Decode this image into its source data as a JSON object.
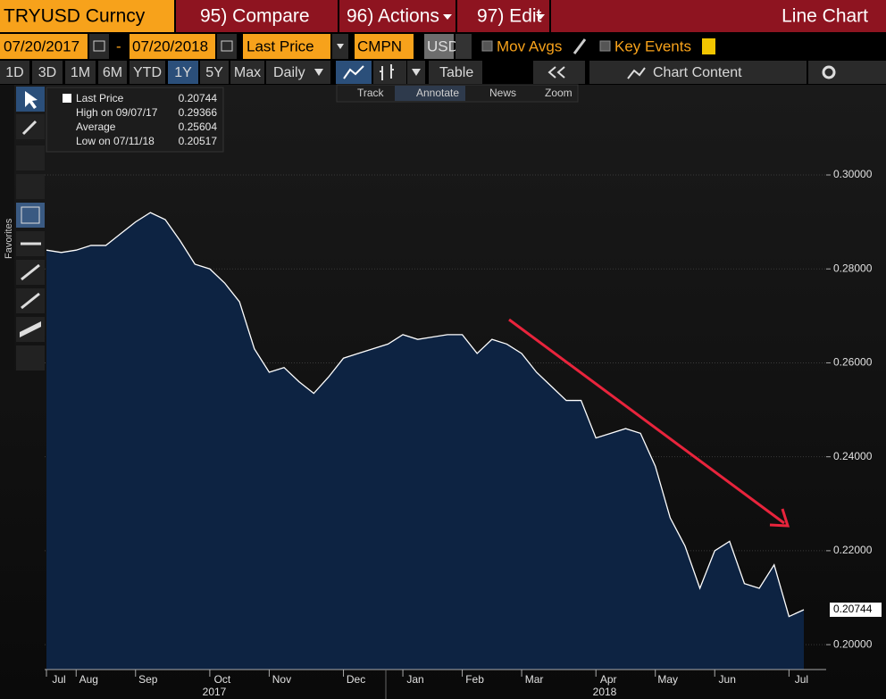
{
  "toolbar": {
    "ticker": "TRYUSD Curncy",
    "compare": "95) Compare",
    "actions": "96) Actions",
    "edit": "97) Edit",
    "view": "Line Chart"
  },
  "controls": {
    "start_date": "07/20/2017",
    "separator": "-",
    "end_date": "07/20/2018",
    "field": "Last Price",
    "source": "CMPN",
    "currency": "USD",
    "mov_avgs": "Mov Avgs",
    "key_events": "Key Events"
  },
  "periods": [
    "1D",
    "3D",
    "1M",
    "6M",
    "YTD",
    "1Y",
    "5Y",
    "Max"
  ],
  "frequency": "Daily",
  "table": "Table",
  "chart_content": "Chart Content",
  "annotation_tools": [
    "Track",
    "Annotate",
    "News",
    "Zoom"
  ],
  "sidebar": {
    "favorites": "Favorites"
  },
  "chart_data": {
    "type": "area",
    "color": "#ffffff",
    "fill": "#0d2342",
    "categories": [
      "Jul",
      null,
      "Aug",
      null,
      null,
      null,
      "Sep",
      null,
      null,
      null,
      null,
      "Oct",
      null,
      null,
      null,
      "Nov",
      null,
      null,
      null,
      null,
      "Dec",
      null,
      null,
      null,
      "Jan",
      null,
      null,
      null,
      "Feb",
      null,
      null,
      null,
      "Mar",
      null,
      null,
      null,
      null,
      "Apr",
      null,
      null,
      null,
      "May",
      null,
      null,
      null,
      "Jun",
      null,
      null,
      null,
      null,
      "Jul",
      null
    ],
    "values": [
      0.284,
      0.2835,
      0.284,
      0.285,
      0.285,
      0.2875,
      0.29,
      0.292,
      0.2905,
      0.286,
      0.281,
      0.28,
      0.277,
      0.273,
      0.263,
      0.258,
      0.259,
      0.256,
      0.2535,
      0.257,
      0.261,
      0.262,
      0.263,
      0.264,
      0.266,
      0.265,
      0.2655,
      0.266,
      0.266,
      0.262,
      0.265,
      0.264,
      0.262,
      0.258,
      0.255,
      0.252,
      0.252,
      0.244,
      0.245,
      0.246,
      0.245,
      0.238,
      0.227,
      0.221,
      0.212,
      0.22,
      0.222,
      0.213,
      0.212,
      0.217,
      0.206,
      0.20744
    ],
    "x_groups": [
      "2017",
      "2018"
    ],
    "ylim": [
      0.1947,
      0.3192
    ],
    "yticks": [
      {
        "value": 0.2,
        "label": "0.20000"
      },
      {
        "value": 0.22,
        "label": "0.22000"
      },
      {
        "value": 0.24,
        "label": "0.24000"
      },
      {
        "value": 0.26,
        "label": "0.26000"
      },
      {
        "value": 0.28,
        "label": "0.28000"
      },
      {
        "value": 0.3,
        "label": "0.30000"
      }
    ],
    "grid": true,
    "stats": [
      {
        "label": "Last Price",
        "value": 0.20744
      },
      {
        "label": "High on 09/07/17",
        "value": 0.29366
      },
      {
        "label": "Average",
        "value": 0.25604
      },
      {
        "label": "Low on 07/11/18",
        "value": 0.20517
      }
    ]
  }
}
